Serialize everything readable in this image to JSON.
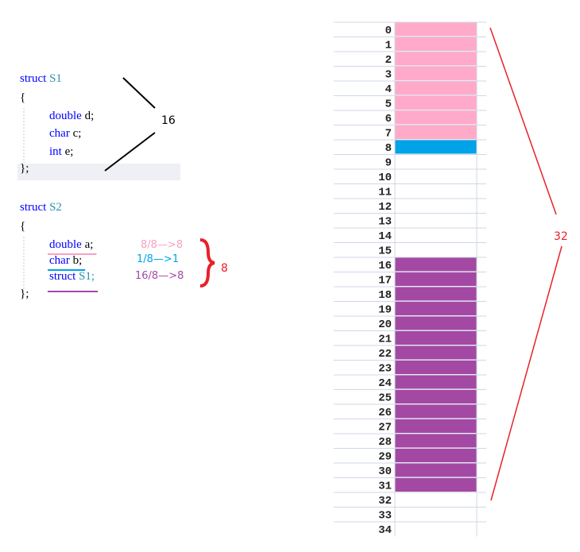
{
  "code": [
    {
      "lines": [
        [
          {
            "text": "struct",
            "color": "#0000ff"
          },
          {
            "text": " S1",
            "color": "#2b91af"
          }
        ],
        [
          {
            "text": "{",
            "color": "#000000"
          }
        ],
        [
          {
            "text": "double",
            "color": "#0000ff"
          },
          {
            "text": " d;",
            "color": "#000000"
          }
        ],
        [
          {
            "text": "char",
            "color": "#0000ff"
          },
          {
            "text": " c;",
            "color": "#000000"
          }
        ],
        [
          {
            "text": "int",
            "color": "#0000ff"
          },
          {
            "text": " e;",
            "color": "#000000"
          }
        ],
        [
          {
            "text": "};",
            "color": "#000000"
          }
        ]
      ]
    },
    {
      "lines": [
        [
          {
            "text": "struct",
            "color": "#0000ff"
          },
          {
            "text": " S2",
            "color": "#2b91af"
          }
        ],
        [
          {
            "text": "{",
            "color": "#000000"
          }
        ],
        [
          {
            "text": "double",
            "color": "#0000ff"
          },
          {
            "text": " a;",
            "color": "#000000"
          }
        ],
        [
          {
            "text": "char",
            "color": "#0000ff"
          },
          {
            "text": " b;",
            "color": "#000000"
          }
        ],
        [
          {
            "text": "struct",
            "color": "#0000ff"
          },
          {
            "text": " S1;",
            "color": "#2b91af"
          }
        ],
        [
          {
            "text": "};",
            "color": "#000000"
          }
        ]
      ]
    }
  ],
  "annotations": {
    "s1_size": "16",
    "members": [
      {
        "text": "8/8—>8",
        "color": "#f7a1c4"
      },
      {
        "text": "1/8—>1",
        "color": "#00a2e8"
      },
      {
        "text": "16/8—>8",
        "color": "#a349a4"
      }
    ],
    "s2_size": "8",
    "total": "32"
  },
  "memory": {
    "rows": [
      0,
      1,
      2,
      3,
      4,
      5,
      6,
      7,
      8,
      9,
      10,
      11,
      12,
      13,
      14,
      15,
      16,
      17,
      18,
      19,
      20,
      21,
      22,
      23,
      24,
      25,
      26,
      27,
      28,
      29,
      30,
      31,
      32,
      33,
      34
    ],
    "segments": [
      {
        "from": 0,
        "to": 7,
        "color": "#ffaac9"
      },
      {
        "from": 8,
        "to": 8,
        "color": "#00a2e8"
      },
      {
        "from": 16,
        "to": 31,
        "color": "#a349a4"
      }
    ]
  }
}
